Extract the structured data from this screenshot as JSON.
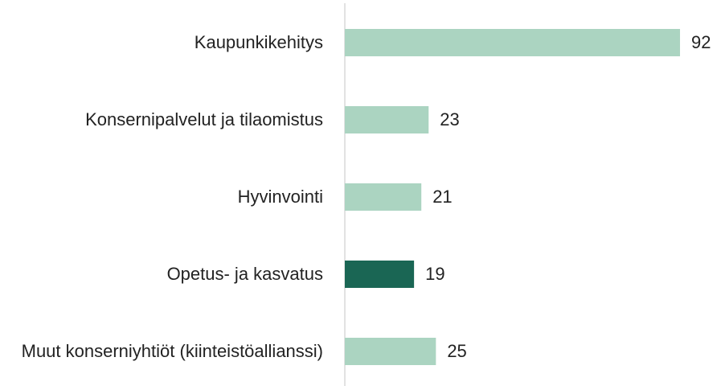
{
  "chart_data": {
    "type": "barh",
    "categories": [
      "Kaupunkikehitys",
      "Konsernipalvelut ja tilaomistus",
      "Hyvinvointi",
      "Opetus- ja kasvatus",
      "Muut konserniyhtiöt (kiinteistöallianssi)"
    ],
    "values": [
      92,
      23,
      21,
      19,
      25
    ],
    "colors": [
      "#abd4c1",
      "#abd4c1",
      "#abd4c1",
      "#1a6654",
      "#abd4c1"
    ]
  }
}
